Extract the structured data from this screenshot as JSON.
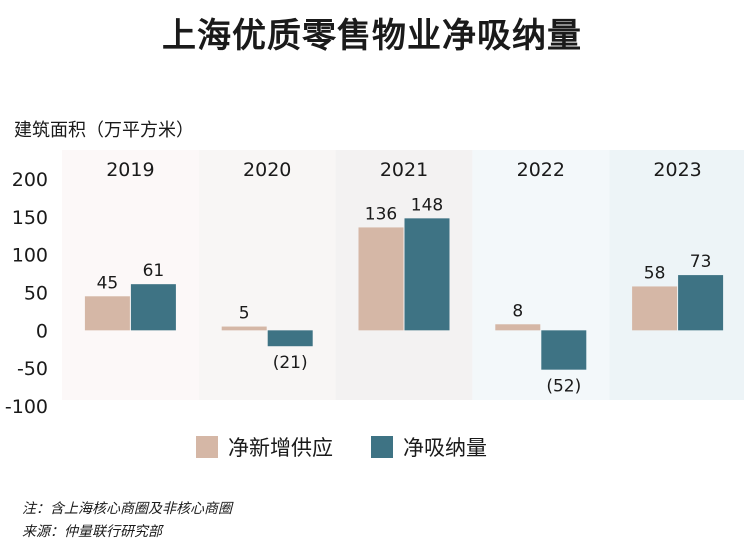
{
  "title": "上海优质零售物业净吸纳量",
  "unit_label": "建筑面积（万平方米）",
  "notes": {
    "note": "注：含上海核心商圈及非核心商圈",
    "source": "来源：仲量联行研究部"
  },
  "chart_data": {
    "type": "bar",
    "title": "上海优质零售物业净吸纳量",
    "ylabel": "建筑面积（万平方米）",
    "categories": [
      "2019",
      "2020",
      "2021",
      "2022",
      "2023"
    ],
    "series": [
      {
        "name": "净新增供应",
        "values": [
          45,
          5,
          136,
          8,
          58
        ],
        "labels": [
          "45",
          "5",
          "136",
          "8",
          "58"
        ],
        "color": "#d5b7a6"
      },
      {
        "name": "净吸纳量",
        "values": [
          61,
          -21,
          148,
          -52,
          73
        ],
        "labels": [
          "61",
          "(21)",
          "148",
          "(52)",
          "73"
        ],
        "color": "#3e7384"
      }
    ],
    "ylim": [
      -100,
      200
    ],
    "yticks": [
      200,
      150,
      100,
      50,
      0,
      -50,
      -100
    ],
    "ytick_labels": [
      "200",
      "150",
      "100",
      "50",
      "0",
      "-50",
      "-100"
    ],
    "panel_colors": [
      "#fcf8f8",
      "#f8f6f5",
      "#f3f2f2",
      "#f3f8fa",
      "#edf4f7"
    ],
    "legend_position": "bottom",
    "grid": false
  }
}
